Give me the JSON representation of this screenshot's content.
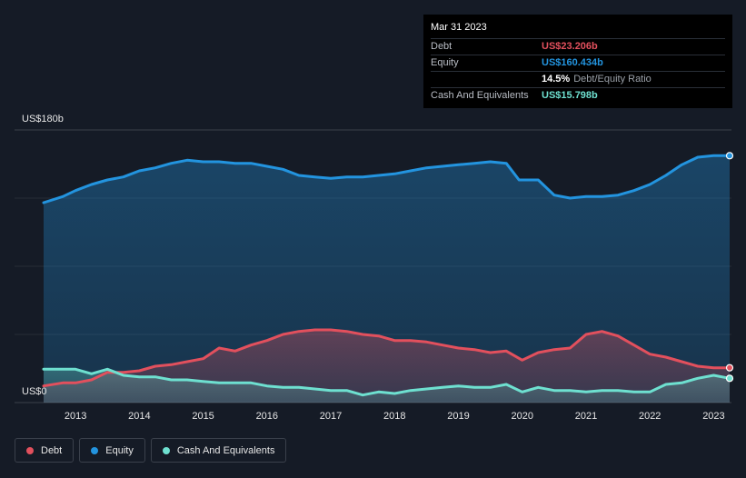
{
  "tooltip": {
    "date": "Mar 31 2023",
    "debt_label": "Debt",
    "debt_value": "US$23.206b",
    "equity_label": "Equity",
    "equity_value": "US$160.434b",
    "ratio_value": "14.5%",
    "ratio_label": "Debt/Equity Ratio",
    "cash_label": "Cash And Equivalents",
    "cash_value": "US$15.798b"
  },
  "legend": {
    "debt": "Debt",
    "equity": "Equity",
    "cash": "Cash And Equivalents"
  },
  "colors": {
    "debt": "#e2505d",
    "equity": "#2394df",
    "cash": "#6ee0d0",
    "background": "#151b26"
  },
  "chart_data": {
    "type": "area",
    "y_top_label": "US$180b",
    "y_bottom_label": "US$0",
    "ylim": [
      0,
      180
    ],
    "xlim": [
      2012.5,
      2023.25
    ],
    "x_ticks": [
      "2013",
      "2014",
      "2015",
      "2016",
      "2017",
      "2018",
      "2019",
      "2020",
      "2021",
      "2022",
      "2023"
    ],
    "series": [
      {
        "name": "Equity",
        "key": "equity",
        "x": [
          2012.5,
          2012.8,
          2013.0,
          2013.25,
          2013.5,
          2013.75,
          2014.0,
          2014.25,
          2014.5,
          2014.75,
          2015.0,
          2015.25,
          2015.5,
          2015.75,
          2016.0,
          2016.25,
          2016.5,
          2016.75,
          2017.0,
          2017.25,
          2017.5,
          2017.75,
          2018.0,
          2018.25,
          2018.5,
          2018.75,
          2019.0,
          2019.25,
          2019.5,
          2019.75,
          2019.95,
          2020.25,
          2020.5,
          2020.75,
          2021.0,
          2021.25,
          2021.5,
          2021.75,
          2022.0,
          2022.25,
          2022.5,
          2022.75,
          2023.0,
          2023.25
        ],
        "values": [
          132,
          136,
          140,
          144,
          147,
          149,
          153,
          155,
          158,
          160,
          159,
          159,
          158,
          158,
          156,
          154,
          150,
          149,
          148,
          149,
          149,
          150,
          151,
          153,
          155,
          156,
          157,
          158,
          159,
          158,
          147,
          147,
          137,
          135,
          136,
          136,
          137,
          140,
          144,
          150,
          157,
          162,
          163,
          163
        ]
      },
      {
        "name": "Debt",
        "key": "debt",
        "x": [
          2012.5,
          2012.8,
          2013.0,
          2013.25,
          2013.5,
          2013.75,
          2014.0,
          2014.25,
          2014.5,
          2014.75,
          2015.0,
          2015.25,
          2015.5,
          2015.75,
          2016.0,
          2016.25,
          2016.5,
          2016.75,
          2017.0,
          2017.25,
          2017.5,
          2017.75,
          2018.0,
          2018.25,
          2018.5,
          2018.75,
          2019.0,
          2019.25,
          2019.5,
          2019.75,
          2020.0,
          2020.25,
          2020.5,
          2020.75,
          2021.0,
          2021.25,
          2021.5,
          2021.75,
          2022.0,
          2022.25,
          2022.5,
          2022.75,
          2023.0,
          2023.25
        ],
        "values": [
          11,
          13,
          13,
          15,
          20,
          20,
          21,
          24,
          25,
          27,
          29,
          36,
          34,
          38,
          41,
          45,
          47,
          48,
          48,
          47,
          45,
          44,
          41,
          41,
          40,
          38,
          36,
          35,
          33,
          34,
          28,
          33,
          35,
          36,
          45,
          47,
          44,
          38,
          32,
          30,
          27,
          24,
          23,
          23
        ]
      },
      {
        "name": "Cash And Equivalents",
        "key": "cash",
        "x": [
          2012.5,
          2012.8,
          2013.0,
          2013.25,
          2013.5,
          2013.75,
          2014.0,
          2014.25,
          2014.5,
          2014.75,
          2015.0,
          2015.25,
          2015.5,
          2015.75,
          2016.0,
          2016.25,
          2016.5,
          2016.75,
          2017.0,
          2017.25,
          2017.5,
          2017.75,
          2018.0,
          2018.25,
          2018.5,
          2018.75,
          2019.0,
          2019.25,
          2019.5,
          2019.75,
          2020.0,
          2020.25,
          2020.5,
          2020.75,
          2021.0,
          2021.25,
          2021.5,
          2021.75,
          2022.0,
          2022.25,
          2022.5,
          2022.75,
          2023.0,
          2023.25
        ],
        "values": [
          22,
          22,
          22,
          19,
          22,
          18,
          17,
          17,
          15,
          15,
          14,
          13,
          13,
          13,
          11,
          10,
          10,
          9,
          8,
          8,
          5,
          7,
          6,
          8,
          9,
          10,
          11,
          10,
          10,
          12,
          7,
          10,
          8,
          8,
          7,
          8,
          8,
          7,
          7,
          12,
          13,
          16,
          18,
          16
        ]
      }
    ]
  }
}
